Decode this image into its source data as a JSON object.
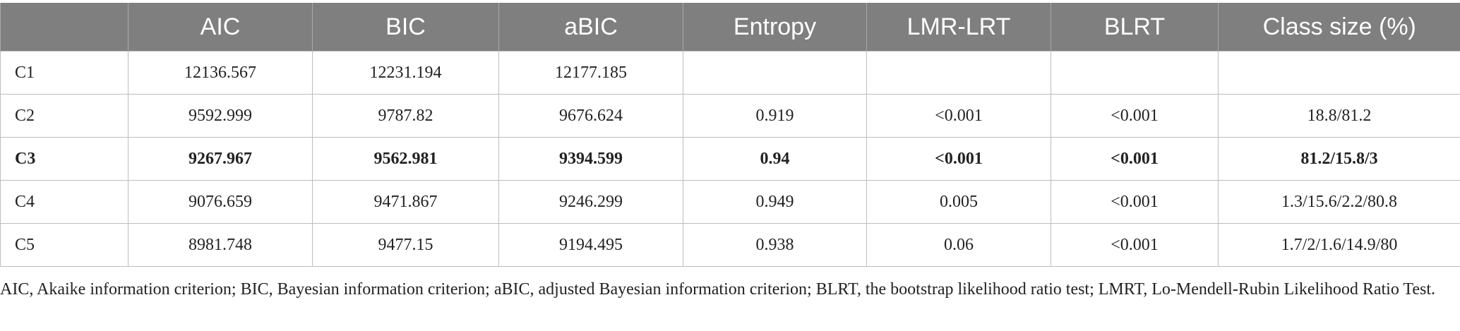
{
  "table": {
    "header": [
      "",
      "AIC",
      "BIC",
      "aBIC",
      "Entropy",
      "LMR-LRT",
      "BLRT",
      "Class size (%)"
    ],
    "rows": [
      {
        "cells": [
          "C1",
          "12136.567",
          "12231.194",
          "12177.185",
          null,
          null,
          null,
          null
        ],
        "bold": false
      },
      {
        "cells": [
          "C2",
          "9592.999",
          "9787.82",
          "9676.624",
          "0.919",
          "<0.001",
          "<0.001",
          "18.8/81.2"
        ],
        "bold": false
      },
      {
        "cells": [
          "C3",
          "9267.967",
          "9562.981",
          "9394.599",
          "0.94",
          "<0.001",
          "<0.001",
          "81.2/15.8/3"
        ],
        "bold": true
      },
      {
        "cells": [
          "C4",
          "9076.659",
          "9471.867",
          "9246.299",
          "0.949",
          "0.005",
          "<0.001",
          "1.3/15.6/2.2/80.8"
        ],
        "bold": false
      },
      {
        "cells": [
          "C5",
          "8981.748",
          "9477.15",
          "9194.495",
          "0.938",
          "0.06",
          "<0.001",
          "1.7/2/1.6/14.9/80"
        ],
        "bold": false
      }
    ]
  },
  "footnote": "AIC, Akaike information criterion; BIC, Bayesian information criterion; aBIC, adjusted Bayesian information criterion; BLRT, the bootstrap likelihood ratio test; LMRT, Lo-Mendell-Rubin Likelihood Ratio Test."
}
